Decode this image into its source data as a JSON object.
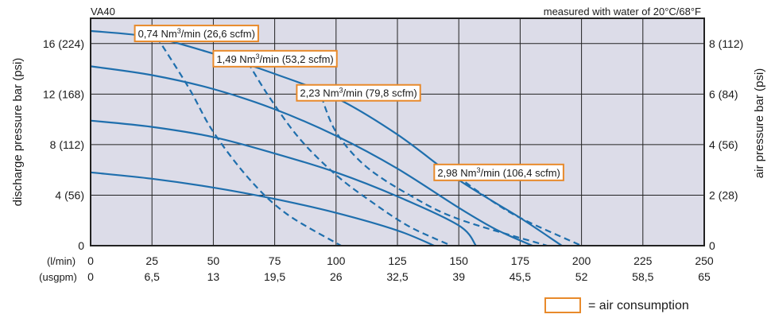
{
  "chart_data": {
    "type": "line",
    "title": "VA40",
    "subtitle": "measured with water of 20°C/68°F",
    "ylabel": "discharge pressure bar (psi)",
    "y2label": "air pressure bar (psi)",
    "xlim": [
      0,
      250
    ],
    "ylim": [
      0,
      18
    ],
    "grid": true,
    "legend": "bottom-right",
    "x_row_labels": [
      "(l/min)",
      "(usgpm)"
    ],
    "x_ticks": [
      {
        "value": 0,
        "lpm": "0",
        "usgpm": "0"
      },
      {
        "value": 25,
        "lpm": "25",
        "usgpm": "6,5"
      },
      {
        "value": 50,
        "lpm": "50",
        "usgpm": "13"
      },
      {
        "value": 75,
        "lpm": "75",
        "usgpm": "19,5"
      },
      {
        "value": 100,
        "lpm": "100",
        "usgpm": "26"
      },
      {
        "value": 125,
        "lpm": "125",
        "usgpm": "32,5"
      },
      {
        "value": 150,
        "lpm": "150",
        "usgpm": "39"
      },
      {
        "value": 175,
        "lpm": "175",
        "usgpm": "45,5"
      },
      {
        "value": 200,
        "lpm": "200",
        "usgpm": "52"
      },
      {
        "value": 225,
        "lpm": "225",
        "usgpm": "58,5"
      },
      {
        "value": 250,
        "lpm": "250",
        "usgpm": "65"
      }
    ],
    "y_ticks": [
      {
        "value": 0,
        "label": "0"
      },
      {
        "value": 4,
        "label": "4 (56)"
      },
      {
        "value": 8,
        "label": "8 (112)"
      },
      {
        "value": 12,
        "label": "12 (168)"
      },
      {
        "value": 16,
        "label": "16 (224)"
      }
    ],
    "y2_ticks": [
      {
        "value": 0,
        "label": "0"
      },
      {
        "value": 4,
        "label": "2 (28)"
      },
      {
        "value": 8,
        "label": "4 (56)"
      },
      {
        "value": 12,
        "label": "6 (84)"
      },
      {
        "value": 16,
        "label": "8 (112)"
      }
    ],
    "series": [
      {
        "style": "solid",
        "points": [
          [
            0,
            17
          ],
          [
            25,
            16.5
          ],
          [
            50,
            15.2
          ],
          [
            75,
            13.6
          ],
          [
            100,
            11.7
          ],
          [
            125,
            8.8
          ],
          [
            150,
            5.2
          ],
          [
            175,
            2.2
          ],
          [
            192,
            0
          ]
        ]
      },
      {
        "style": "solid",
        "points": [
          [
            0,
            14.2
          ],
          [
            25,
            13.5
          ],
          [
            50,
            12.4
          ],
          [
            75,
            10.8
          ],
          [
            100,
            8.7
          ],
          [
            125,
            6.1
          ],
          [
            150,
            3.0
          ],
          [
            165,
            1.3
          ],
          [
            180,
            0
          ]
        ]
      },
      {
        "style": "solid",
        "points": [
          [
            0,
            9.9
          ],
          [
            25,
            9.4
          ],
          [
            50,
            8.6
          ],
          [
            75,
            7.3
          ],
          [
            100,
            5.8
          ],
          [
            125,
            3.9
          ],
          [
            150,
            1.6
          ],
          [
            157,
            0
          ]
        ]
      },
      {
        "style": "solid",
        "points": [
          [
            0,
            5.8
          ],
          [
            25,
            5.3
          ],
          [
            50,
            4.6
          ],
          [
            75,
            3.7
          ],
          [
            100,
            2.6
          ],
          [
            125,
            1.2
          ],
          [
            140,
            0
          ]
        ]
      },
      {
        "style": "dashed",
        "points": [
          [
            27,
            16.5
          ],
          [
            40,
            12.5
          ],
          [
            50,
            9.0
          ],
          [
            65,
            5.2
          ],
          [
            80,
            2.5
          ],
          [
            102,
            0
          ]
        ]
      },
      {
        "style": "dashed",
        "points": [
          [
            62,
            15.2
          ],
          [
            72,
            12.0
          ],
          [
            85,
            8.5
          ],
          [
            100,
            5.6
          ],
          [
            115,
            3.4
          ],
          [
            130,
            1.5
          ],
          [
            147,
            0
          ]
        ]
      },
      {
        "style": "dashed",
        "points": [
          [
            94,
            11.8
          ],
          [
            100,
            9.0
          ],
          [
            112,
            6.3
          ],
          [
            130,
            4.0
          ],
          [
            150,
            2.1
          ],
          [
            186,
            0
          ]
        ]
      },
      {
        "style": "dashed",
        "points": [
          [
            146,
            6.0
          ],
          [
            160,
            4.0
          ],
          [
            175,
            2.2
          ],
          [
            200,
            0
          ]
        ]
      }
    ],
    "annotations": [
      {
        "prefix": "0,74 Nm",
        "sup": "3",
        "suffix": "/min (26,6 scfm)",
        "x": 18,
        "y": 16.8
      },
      {
        "prefix": "1,49 Nm",
        "sup": "3",
        "suffix": "/min (53,2 scfm)",
        "x": 50,
        "y": 14.8
      },
      {
        "prefix": "2,23 Nm",
        "sup": "3",
        "suffix": "/min (79,8 scfm)",
        "x": 84,
        "y": 12.1
      },
      {
        "prefix": "2,98 Nm",
        "sup": "3",
        "suffix": "/min (106,4 scfm)",
        "x": 140,
        "y": 5.8
      }
    ],
    "legend_label": "= air consumption",
    "colors": {
      "plot_bg": "#dcdce8",
      "line": "#1f6fad",
      "box": "#e88a2b",
      "grid": "#222222"
    }
  }
}
